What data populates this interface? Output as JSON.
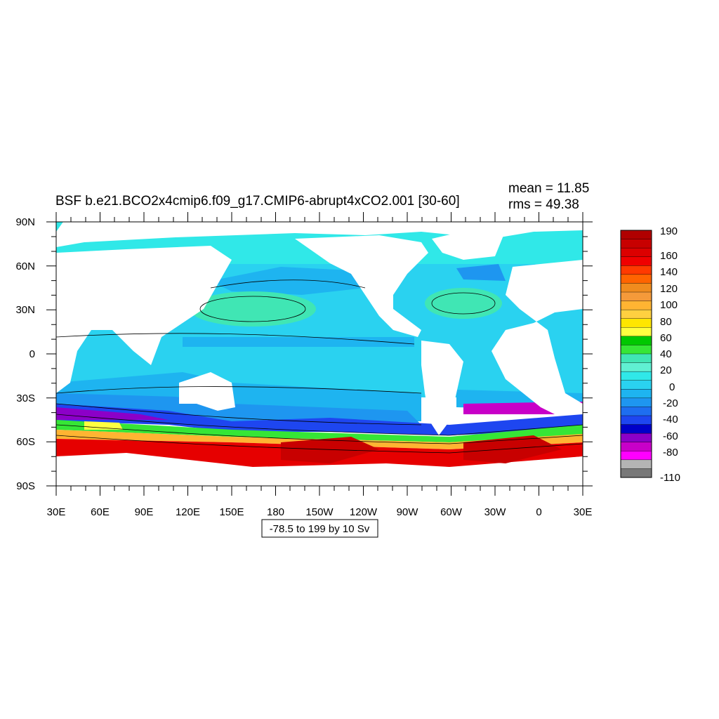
{
  "plot": {
    "title": "BSF b.e21.BCO2x4cmip6.f09_g17.CMIP6-abrupt4xCO2.001 [30-60]",
    "mean_text": "mean = 11.85",
    "rms_text": "rms = 49.38",
    "contour_info": "-78.5 to 199 by 10 Sv"
  },
  "axes": {
    "lon_labels": [
      "30E",
      "60E",
      "90E",
      "120E",
      "150E",
      "180",
      "150W",
      "120W",
      "90W",
      "60W",
      "30W",
      "0",
      "30E"
    ],
    "lat_labels": [
      "90N",
      "60N",
      "30N",
      "0",
      "30S",
      "60S",
      "90S"
    ]
  },
  "colorbar": {
    "levels": [
      "190",
      "160",
      "140",
      "120",
      "100",
      "80",
      "60",
      "40",
      "20",
      "0",
      "-20",
      "-40",
      "-60",
      "-80",
      "-110"
    ],
    "colors": [
      "#b00000",
      "#c80000",
      "#dc0000",
      "#f00000",
      "#ff3a00",
      "#ff6400",
      "#f08c1e",
      "#f59a3a",
      "#ffb432",
      "#ffd040",
      "#ffe600",
      "#ffff40",
      "#00c800",
      "#36e636",
      "#40e6b4",
      "#60f0d2",
      "#30e8e8",
      "#2ad2f0",
      "#1eb4f0",
      "#1e96f0",
      "#1e6ef0",
      "#1e46f0",
      "#0000c8",
      "#8c00c8",
      "#c800c8",
      "#ff00ff",
      "#b4b4b4",
      "#787878"
    ]
  },
  "map": {
    "land_color": "#ffffff",
    "ocean_colors": {
      "arctic": "#30e8e8",
      "pacific": "#2ad2f0",
      "subtropical_gyre": "#40e6b4",
      "subpolar": "#1eb4f0",
      "south_gyre": "#1e96f0",
      "acc_blue": "#1e46f0",
      "acc_purple": "#8c00c8",
      "acc_red": "#e60000"
    }
  }
}
